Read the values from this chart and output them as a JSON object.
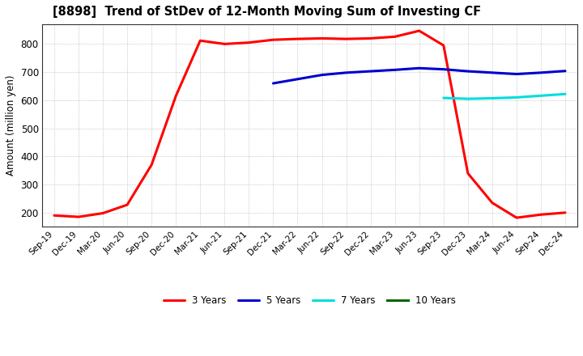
{
  "title": "[8898]  Trend of StDev of 12-Month Moving Sum of Investing CF",
  "ylabel": "Amount (million yen)",
  "background_color": "#ffffff",
  "grid_color": "#999999",
  "x_labels": [
    "Sep-19",
    "Dec-19",
    "Mar-20",
    "Jun-20",
    "Sep-20",
    "Dec-20",
    "Mar-21",
    "Jun-21",
    "Sep-21",
    "Dec-21",
    "Mar-22",
    "Jun-22",
    "Sep-22",
    "Dec-22",
    "Mar-23",
    "Jun-23",
    "Sep-23",
    "Dec-23",
    "Mar-24",
    "Jun-24",
    "Sep-24",
    "Dec-24"
  ],
  "ylim": [
    150,
    870
  ],
  "yticks": [
    200,
    300,
    400,
    500,
    600,
    700,
    800
  ],
  "series": {
    "3 Years": {
      "color": "#ff0000",
      "linewidth": 2.2,
      "x_indices": [
        0,
        1,
        2,
        3,
        4,
        5,
        6,
        7,
        8,
        9,
        10,
        11,
        12,
        13,
        14,
        15,
        16,
        17,
        18,
        19,
        20,
        21
      ],
      "y": [
        190,
        185,
        198,
        228,
        370,
        615,
        812,
        800,
        805,
        815,
        818,
        820,
        818,
        820,
        826,
        847,
        795,
        340,
        235,
        182,
        193,
        200
      ]
    },
    "5 Years": {
      "color": "#0000cc",
      "linewidth": 2.2,
      "x_indices": [
        9,
        10,
        11,
        12,
        13,
        14,
        15,
        16,
        17,
        18,
        19,
        20,
        21
      ],
      "y": [
        660,
        675,
        690,
        698,
        703,
        708,
        714,
        710,
        703,
        698,
        693,
        698,
        704
      ]
    },
    "7 Years": {
      "color": "#00dddd",
      "linewidth": 2.2,
      "x_indices": [
        16,
        17,
        18,
        19,
        20,
        21
      ],
      "y": [
        608,
        605,
        607,
        610,
        616,
        622
      ]
    },
    "10 Years": {
      "color": "#006600",
      "linewidth": 2.2,
      "x_indices": [],
      "y": []
    }
  },
  "legend_order": [
    "3 Years",
    "5 Years",
    "7 Years",
    "10 Years"
  ]
}
